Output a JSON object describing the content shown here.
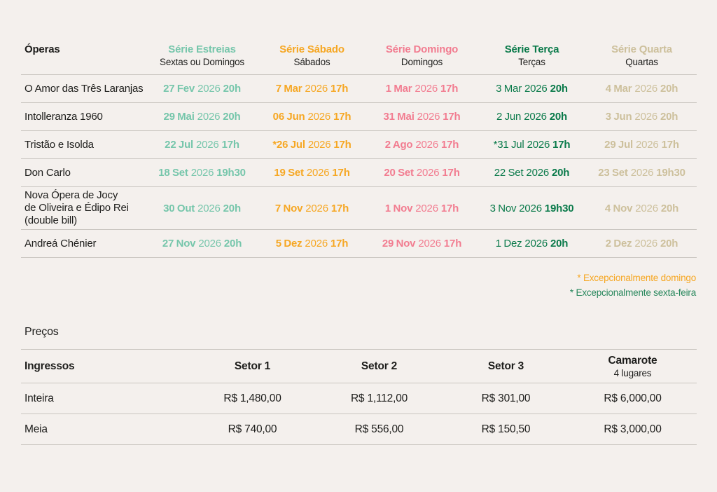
{
  "colors": {
    "background": "#F4F0ED",
    "text": "#1D1D1B",
    "divider": "#C9C5C0",
    "serie_estreias": "#76C6AB",
    "serie_sabado": "#F6A723",
    "serie_domingo": "#F27C90",
    "serie_terca": "#0A7A4A",
    "serie_quarta": "#CDC09C",
    "footnote_domingo": "#F6A723",
    "footnote_sexta": "#27875C"
  },
  "schedule": {
    "operas_header": "Óperas",
    "series": [
      {
        "name": "Série Estreias",
        "sub": "Sextas ou Domingos"
      },
      {
        "name": "Série Sábado",
        "sub": "Sábados"
      },
      {
        "name": "Série Domingo",
        "sub": "Domingos"
      },
      {
        "name": "Série Terça",
        "sub": "Terças"
      },
      {
        "name": "Série Quarta",
        "sub": "Quartas"
      }
    ],
    "rows": [
      {
        "opera": "O Amor das Três Laranjas",
        "dates": [
          [
            "27 Fev",
            "2026",
            "20h"
          ],
          [
            "7 Mar",
            "2026",
            "17h"
          ],
          [
            "1 Mar",
            "2026",
            "17h"
          ],
          [
            "3 Mar",
            "2026",
            "20h"
          ],
          [
            "4 Mar",
            "2026",
            "20h"
          ]
        ]
      },
      {
        "opera": "Intolleranza 1960",
        "dates": [
          [
            "29 Mai",
            "2026",
            "20h"
          ],
          [
            "06 Jun",
            "2026",
            "17h"
          ],
          [
            "31 Mai",
            "2026",
            "17h"
          ],
          [
            "2 Jun",
            "2026",
            "20h"
          ],
          [
            "3 Jun",
            "2026",
            "20h"
          ]
        ]
      },
      {
        "opera": "Tristão e Isolda",
        "dates": [
          [
            "22 Jul",
            "2026",
            "17h"
          ],
          [
            "*26 Jul",
            "2026",
            "17h"
          ],
          [
            "2 Ago",
            "2026",
            "17h"
          ],
          [
            "*31 Jul",
            "2026",
            "17h"
          ],
          [
            "29 Jul",
            "2026",
            "17h"
          ]
        ]
      },
      {
        "opera": "Don Carlo",
        "dates": [
          [
            "18 Set",
            "2026",
            "19h30"
          ],
          [
            "19 Set",
            "2026",
            "17h"
          ],
          [
            "20 Set",
            "2026",
            "17h"
          ],
          [
            "22 Set",
            "2026",
            "20h"
          ],
          [
            "23 Set",
            "2026",
            "19h30"
          ]
        ]
      },
      {
        "opera": "Nova Ópera de Jocy\nde Oliveira e Édipo Rei\n(double bill)",
        "dates": [
          [
            "30 Out",
            "2026",
            "20h"
          ],
          [
            "7 Nov",
            "2026",
            "17h"
          ],
          [
            "1 Nov",
            "2026",
            "17h"
          ],
          [
            "3 Nov",
            "2026",
            "19h30"
          ],
          [
            "4 Nov",
            "2026",
            "20h"
          ]
        ]
      },
      {
        "opera": "Andreá Chénier",
        "dates": [
          [
            "27 Nov",
            "2026",
            "20h"
          ],
          [
            "5 Dez",
            "2026",
            "17h"
          ],
          [
            "29 Nov",
            "2026",
            "17h"
          ],
          [
            "1 Dez",
            "2026",
            "20h"
          ],
          [
            "2 Dez",
            "2026",
            "20h"
          ]
        ]
      }
    ]
  },
  "footnotes": {
    "domingo": "* Excepcionalmente domingo",
    "sexta": "* Excepcionalmente sexta-feira"
  },
  "prices": {
    "title": "Preços",
    "row_header": "Ingressos",
    "columns": [
      {
        "label": "Setor 1",
        "sub": ""
      },
      {
        "label": "Setor 2",
        "sub": ""
      },
      {
        "label": "Setor 3",
        "sub": ""
      },
      {
        "label": "Camarote",
        "sub": "4 lugares"
      }
    ],
    "rows": [
      {
        "label": "Inteira",
        "values": [
          "R$ 1,480,00",
          "R$ 1,112,00",
          "R$ 301,00",
          "R$ 6,000,00"
        ]
      },
      {
        "label": "Meia",
        "values": [
          "R$ 740,00",
          "R$ 556,00",
          "R$ 150,50",
          "R$ 3,000,00"
        ]
      }
    ]
  }
}
